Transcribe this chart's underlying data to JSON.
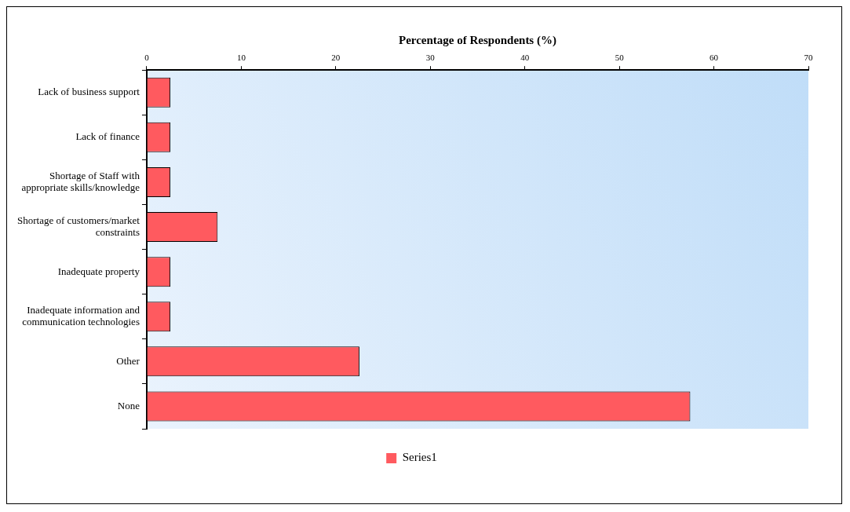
{
  "chart_data": {
    "type": "bar",
    "orientation": "horizontal",
    "xlabel": "Percentage of Respondents (%)",
    "categories": [
      "Lack of business support",
      "Lack of finance",
      "Shortage of Staff with appropriate skills/knowledge",
      "Shortage of customers/market constraints",
      "Inadequate property",
      "Inadequate information and communication technologies",
      "Other",
      "None"
    ],
    "series": [
      {
        "name": "Series1",
        "color": "#ff5a5f",
        "values": [
          2.5,
          2.5,
          2.5,
          7.5,
          2.5,
          2.5,
          22.5,
          57.5
        ]
      }
    ],
    "xlim": [
      0,
      70
    ],
    "xticks": [
      0,
      10,
      20,
      30,
      40,
      50,
      60,
      70
    ],
    "grid": false,
    "legend": "bottom"
  }
}
